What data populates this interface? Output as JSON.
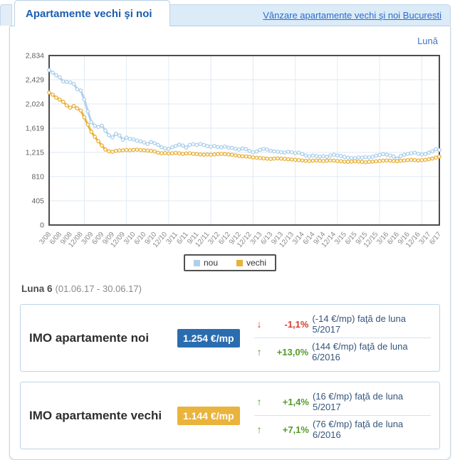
{
  "tab_bar": {
    "active_tab": "Apartamente vechi şi noi",
    "link": "Vânzare apartamente vechi şi noi Bucuresti"
  },
  "toolbar": {
    "period": "Lună"
  },
  "chart_data": {
    "type": "line",
    "title": "",
    "xlabel": "",
    "ylabel": "",
    "ylim": [
      0,
      2834
    ],
    "grid": true,
    "legend_position": "bottom",
    "y_ticks": [
      0,
      405,
      810,
      1215,
      1619,
      2024,
      2429,
      2834
    ],
    "y_tick_labels": [
      "0",
      "405",
      "810",
      "1,215",
      "1,619",
      "2,024",
      "2,429",
      "2,834"
    ],
    "x_tick_labels": [
      "3/08",
      "6/08",
      "9/08",
      "12/08",
      "3/09",
      "6/09",
      "9/09",
      "12/09",
      "3/10",
      "6/10",
      "9/10",
      "12/10",
      "3/11",
      "6/11",
      "9/11",
      "12/11",
      "3/12",
      "6/12",
      "9/12",
      "12/12",
      "3/13",
      "6/13",
      "9/13",
      "12/13",
      "3/14",
      "6/14",
      "9/14",
      "12/14",
      "3/15",
      "6/15",
      "9/15",
      "12/15",
      "3/16",
      "6/16",
      "9/16",
      "12/16",
      "3/17",
      "6/17"
    ],
    "x_tick_every_n_points": 3,
    "series": [
      {
        "name": "nou",
        "color": "#aed0eb",
        "values": [
          2590,
          2548,
          2505,
          2470,
          2400,
          2392,
          2385,
          2360,
          2270,
          2250,
          2100,
          1900,
          1720,
          1660,
          1640,
          1662,
          1580,
          1502,
          1465,
          1525,
          1498,
          1425,
          1462,
          1440,
          1430,
          1410,
          1398,
          1380,
          1355,
          1390,
          1368,
          1340,
          1300,
          1282,
          1272,
          1300,
          1322,
          1345,
          1330,
          1295,
          1340,
          1352,
          1340,
          1355,
          1340,
          1320,
          1310,
          1322,
          1305,
          1300,
          1312,
          1295,
          1290,
          1275,
          1262,
          1280,
          1270,
          1240,
          1218,
          1228,
          1258,
          1272,
          1262,
          1242,
          1232,
          1226,
          1218,
          1212,
          1226,
          1218,
          1202,
          1212,
          1188,
          1162,
          1148,
          1162,
          1155,
          1145,
          1152,
          1140,
          1162,
          1175,
          1162,
          1155,
          1140,
          1126,
          1120,
          1116,
          1130,
          1126,
          1136,
          1130,
          1142,
          1160,
          1172,
          1186,
          1176,
          1162,
          1146,
          1110,
          1155,
          1175,
          1190,
          1200,
          1210,
          1190,
          1180,
          1186,
          1210,
          1232,
          1268,
          1254
        ]
      },
      {
        "name": "vechi",
        "color": "#e9b23b",
        "values": [
          2215,
          2180,
          2130,
          2098,
          2060,
          2000,
          1962,
          1990,
          1950,
          1915,
          1800,
          1680,
          1560,
          1475,
          1400,
          1330,
          1262,
          1232,
          1225,
          1240,
          1246,
          1250,
          1255,
          1250,
          1256,
          1260,
          1255,
          1250,
          1245,
          1240,
          1230,
          1210,
          1200,
          1205,
          1196,
          1200,
          1206,
          1200,
          1190,
          1196,
          1200,
          1190,
          1186,
          1180,
          1176,
          1180,
          1176,
          1180,
          1186,
          1190,
          1186,
          1180,
          1175,
          1166,
          1156,
          1150,
          1146,
          1140,
          1130,
          1126,
          1120,
          1115,
          1110,
          1105,
          1110,
          1115,
          1110,
          1105,
          1100,
          1096,
          1090,
          1086,
          1080,
          1076,
          1070,
          1076,
          1080,
          1076,
          1070,
          1076,
          1080,
          1076,
          1070,
          1066,
          1060,
          1056,
          1060,
          1066,
          1060,
          1056,
          1050,
          1056,
          1060,
          1066,
          1070,
          1076,
          1080,
          1076,
          1070,
          1068,
          1076,
          1080,
          1086,
          1090,
          1086,
          1080,
          1086,
          1090,
          1100,
          1112,
          1128,
          1144
        ]
      }
    ]
  },
  "period_info": {
    "label": "Luna 6",
    "range": "(01.06.17 - 30.06.17)"
  },
  "stats": [
    {
      "title": "IMO apartamente noi",
      "value": "1.254 €/mp",
      "badge_color": "#2a6daf",
      "rows": [
        {
          "direction": "down",
          "arrow": "↓",
          "pct": "-1,1%",
          "rest": "(-14 €/mp) faţă de luna 5/2017"
        },
        {
          "direction": "up",
          "arrow": "↑",
          "pct": "+13,0%",
          "rest": "(144 €/mp) faţă de luna 6/2016"
        }
      ]
    },
    {
      "title": "IMO apartamente vechi",
      "value": "1.144 €/mp",
      "badge_color": "#eab33c",
      "rows": [
        {
          "direction": "up",
          "arrow": "↑",
          "pct": "+1,4%",
          "rest": "(16 €/mp) faţă de luna 5/2017"
        },
        {
          "direction": "up",
          "arrow": "↑",
          "pct": "+7,1%",
          "rest": "(76 €/mp) faţă de luna 6/2016"
        }
      ]
    }
  ],
  "colors": {
    "accent_blue": "#1a5db0",
    "positive_green": "#559a2b",
    "negative_red": "#d93a2b",
    "grid": "#dfeaf3",
    "plot_border": "#4d4d4d"
  }
}
